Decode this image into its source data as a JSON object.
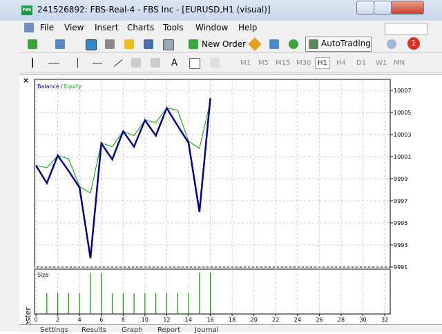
{
  "window": {
    "title": "241526892: FBS-Real-4 - FBS Inc - [EURUSD,H1 (visual)]",
    "logo": "FBS"
  },
  "menu": [
    "File",
    "View",
    "Insert",
    "Charts",
    "Tools",
    "Window",
    "Help"
  ],
  "toolbar": {
    "new_order": "New Order",
    "autotrading": "AutoTrading",
    "text_tool": "A",
    "notifications": "1"
  },
  "timeframes": [
    "M1",
    "M5",
    "M15",
    "M30",
    "H1",
    "H4",
    "D1",
    "W1",
    "MN"
  ],
  "active_timeframe": "H1",
  "tester_tabs": [
    "Settings",
    "Results",
    "Graph",
    "Report",
    "Journal"
  ],
  "tester_side_label": "Tester",
  "chart_data": {
    "type": "line",
    "legend_separator": "/",
    "x": [
      0,
      1,
      2,
      3,
      4,
      5,
      6,
      7,
      8,
      9,
      10,
      11,
      12,
      13,
      14,
      15,
      16
    ],
    "series": [
      {
        "name": "Balance",
        "color": "#00008b",
        "values": [
          10000.2,
          9998.6,
          10001.1,
          9999.7,
          9998.2,
          9991.8,
          10002.2,
          10000.75,
          10003.3,
          10001.9,
          10004.3,
          10002.9,
          10005.4,
          10003.8,
          10002.25,
          9996,
          10006.3
        ]
      },
      {
        "name": "Equity",
        "color": "#00a000",
        "values": [
          10000.2,
          10000,
          10001.1,
          10000.8,
          9998.3,
          9997.7,
          10002.25,
          10001.9,
          10003.3,
          10002.9,
          10004.3,
          10004.1,
          10005.4,
          10005.2,
          10002.4,
          10001.75,
          10006
        ]
      }
    ],
    "xlim": [
      -0.13,
      32.5
    ],
    "xticks": [
      0,
      2,
      4,
      6,
      8,
      10,
      12,
      14,
      16,
      18,
      20,
      22,
      24,
      26,
      28,
      30,
      32
    ],
    "ylim": [
      9991,
      10008
    ],
    "yticks": [
      9991,
      9993,
      9995,
      9997,
      9999,
      10001,
      10003,
      10005,
      10007
    ],
    "grid": true,
    "size_panel": {
      "type": "bar",
      "title": "Size",
      "color": "#00a000",
      "x": [
        1,
        2,
        3,
        4,
        5,
        6,
        7,
        8,
        9,
        10,
        11,
        12,
        13,
        14,
        15,
        16
      ],
      "values": [
        1,
        1,
        1,
        1,
        2,
        2,
        1,
        1,
        1,
        1,
        1,
        1,
        1,
        1,
        2,
        2
      ],
      "ylim": [
        0,
        2.17
      ]
    }
  }
}
